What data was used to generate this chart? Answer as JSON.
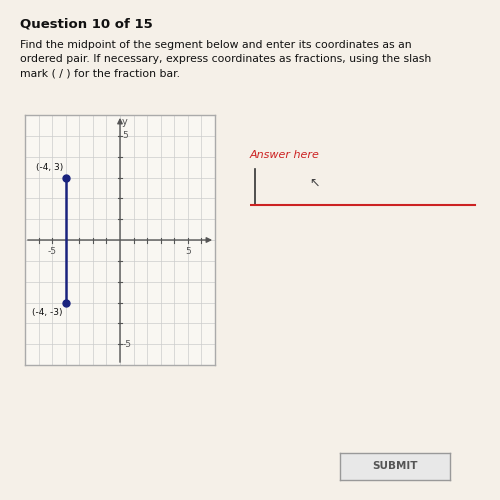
{
  "title": "Question 10 of 15",
  "description_lines": [
    "Find the midpoint of the segment below and enter its coordinates as an",
    "ordered pair. If necessary, express coordinates as fractions, using the slash",
    "mark ( / ) for the fraction bar."
  ],
  "point1": [
    -4,
    3
  ],
  "point2": [
    -4,
    -3
  ],
  "label1": "(-4, 3)",
  "label2": "(-4, -3)",
  "xlim": [
    -7,
    7
  ],
  "ylim": [
    -6,
    6
  ],
  "axis_color": "#555555",
  "point_color": "#1a237e",
  "segment_color": "#1a237e",
  "page_bg_color": "#f5f0e8",
  "answer_label": "Answer here",
  "answer_label_color": "#cc2222",
  "submit_label": "SUBMIT",
  "box_bg": "#f9f7f2",
  "box_border": "#aaaaaa",
  "grid_color": "#cccccc",
  "tick_label_color": "#555555"
}
